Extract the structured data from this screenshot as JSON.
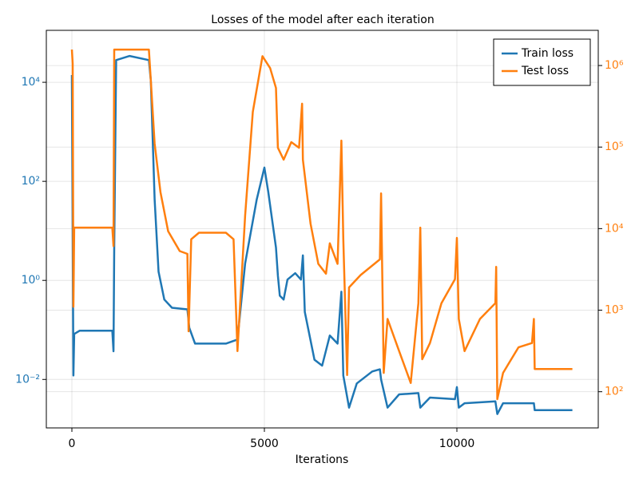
{
  "chart_data": {
    "type": "line",
    "title": "Losses of the model after each iteration",
    "x_label": "Iterations",
    "xlim": [
      -664,
      13672
    ],
    "xticks": [
      0,
      5000,
      10000
    ],
    "ylim": [
      0.00105,
      112000
    ],
    "yticks": [
      {
        "value": 0.01,
        "label": "10⁻²"
      },
      {
        "value": 1,
        "label": "10⁰"
      },
      {
        "value": 100,
        "label": "10²"
      },
      {
        "value": 10000,
        "label": "10⁴"
      }
    ],
    "y2lim": [
      36,
      2700000
    ],
    "y2ticks": [
      {
        "value": 100,
        "label": "10²"
      },
      {
        "value": 1000,
        "label": "10³"
      },
      {
        "value": 10000,
        "label": "10⁴"
      },
      {
        "value": 100000,
        "label": "10⁵"
      },
      {
        "value": 1000000,
        "label": "10⁶"
      }
    ],
    "y_log": true,
    "y2_log": true,
    "grid": true,
    "legend": "upper right",
    "series": [
      {
        "name": "Train loss",
        "color": "#1f77b4",
        "axis": "y",
        "x": [
          0,
          40,
          60,
          200,
          1050,
          1080,
          1100,
          1150,
          1500,
          2000,
          2050,
          2150,
          2250,
          2400,
          2600,
          3000,
          3050,
          3200,
          4000,
          4300,
          4500,
          4800,
          5000,
          5100,
          5300,
          5350,
          5400,
          5500,
          5600,
          5800,
          5950,
          6000,
          6050,
          6300,
          6500,
          6700,
          6900,
          7000,
          7050,
          7200,
          7400,
          7800,
          8000,
          8030,
          8200,
          8500,
          9000,
          9050,
          9300,
          9950,
          10000,
          10050,
          10200,
          11000,
          11050,
          11200,
          12000,
          12020,
          13000
        ],
        "values": [
          14000,
          0.012,
          0.083,
          0.096,
          0.096,
          0.037,
          4.6,
          28000,
          34000,
          28000,
          11000,
          43,
          1.5,
          0.41,
          0.28,
          0.26,
          0.11,
          0.053,
          0.053,
          0.064,
          2.2,
          43,
          190,
          62,
          4.6,
          1.25,
          0.49,
          0.41,
          1.04,
          1.4,
          1.04,
          3.2,
          0.23,
          0.025,
          0.019,
          0.077,
          0.053,
          0.59,
          0.012,
          0.0027,
          0.0083,
          0.0145,
          0.016,
          0.01,
          0.0027,
          0.005,
          0.0053,
          0.0027,
          0.0043,
          0.004,
          0.007,
          0.0027,
          0.0033,
          0.0036,
          0.002,
          0.0033,
          0.0033,
          0.0024,
          0.0024
        ]
      },
      {
        "name": "Test loss",
        "color": "#ff7f0e",
        "axis": "y2",
        "x": [
          0,
          20,
          40,
          60,
          1050,
          1080,
          1100,
          2000,
          2050,
          2150,
          2300,
          2500,
          2800,
          3000,
          3030,
          3100,
          3300,
          4000,
          4200,
          4300,
          4500,
          4700,
          4950,
          5150,
          5300,
          5350,
          5500,
          5700,
          5900,
          5980,
          6000,
          6200,
          6400,
          6600,
          6700,
          6900,
          7000,
          7050,
          7150,
          7200,
          7500,
          8000,
          8030,
          8100,
          8200,
          8500,
          8800,
          9000,
          9050,
          9100,
          9300,
          9600,
          9950,
          10000,
          10050,
          10200,
          10600,
          11000,
          11020,
          11050,
          11200,
          11600,
          11950,
          12000,
          12020,
          13000
        ],
        "values": [
          1570000,
          1050000,
          1100,
          10300,
          10300,
          6100,
          1570000,
          1570000,
          660000,
          110000,
          28000,
          9300,
          5300,
          4900,
          550,
          7400,
          8900,
          8900,
          7400,
          315,
          14500,
          270000,
          1300000,
          930000,
          530000,
          98000,
          70000,
          115000,
          98000,
          340000,
          70000,
          11500,
          3700,
          2800,
          6600,
          3700,
          120000,
          7400,
          160,
          1900,
          2700,
          4200,
          27000,
          170,
          780,
          315,
          128,
          1220,
          10300,
          250,
          395,
          1220,
          2400,
          7700,
          780,
          315,
          780,
          1220,
          3400,
          81,
          170,
          350,
          395,
          780,
          190,
          190
        ]
      }
    ]
  }
}
